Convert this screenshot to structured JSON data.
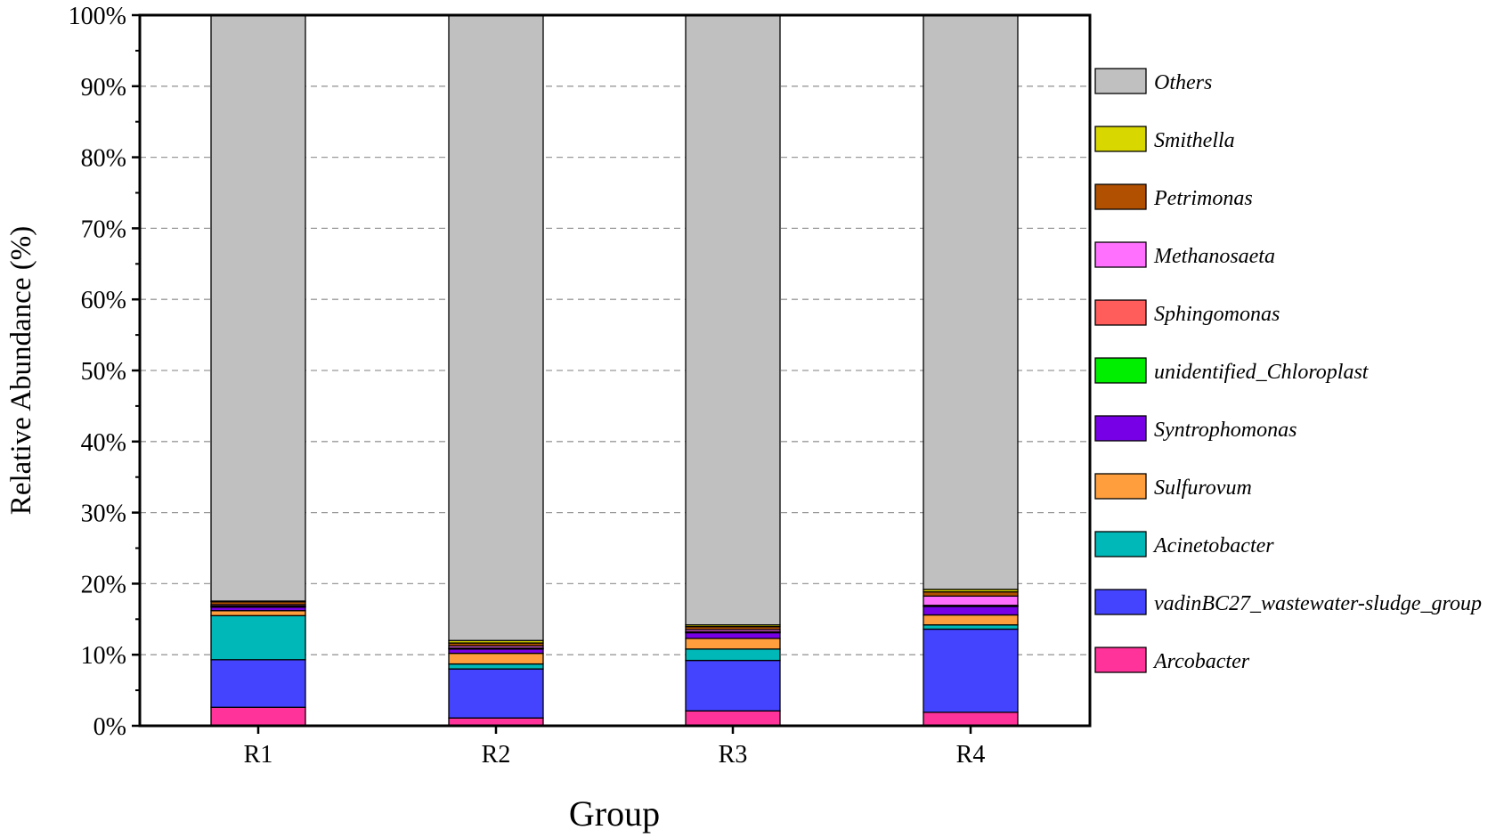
{
  "chart_data": {
    "type": "bar",
    "stacked": true,
    "xlabel": "Group",
    "ylabel": "Relative Abundance (%)",
    "ylim": [
      0,
      100
    ],
    "yticks": [
      "0%",
      "10%",
      "20%",
      "30%",
      "40%",
      "50%",
      "60%",
      "70%",
      "80%",
      "90%",
      "100%"
    ],
    "grid": "horizontal dashed",
    "legend": "right",
    "categories": [
      "R1",
      "R2",
      "R3",
      "R4"
    ],
    "series": [
      {
        "name": "Arcobacter",
        "color": "#FF3399",
        "values": [
          2.6,
          1.1,
          2.1,
          1.9
        ]
      },
      {
        "name": "vadinBC27_wastewater-sludge_group",
        "color": "#4444FF",
        "values": [
          6.7,
          6.9,
          7.1,
          11.7
        ]
      },
      {
        "name": "Acinetobacter",
        "color": "#00B8B8",
        "values": [
          6.2,
          0.7,
          1.6,
          0.6
        ]
      },
      {
        "name": "Sulfurovum",
        "color": "#FF9E3D",
        "values": [
          0.7,
          1.5,
          1.5,
          1.4
        ]
      },
      {
        "name": "Syntrophomonas",
        "color": "#7700E6",
        "values": [
          0.5,
          0.6,
          0.8,
          1.2
        ]
      },
      {
        "name": "unidentified_Chloroplast",
        "color": "#00EE00",
        "values": [
          0.05,
          0.05,
          0.05,
          0.05
        ]
      },
      {
        "name": "Sphingomonas",
        "color": "#FF5C5C",
        "values": [
          0.1,
          0.1,
          0.1,
          0.1
        ]
      },
      {
        "name": "Methanosaeta",
        "color": "#FF70FF",
        "values": [
          0.2,
          0.3,
          0.3,
          1.3
        ]
      },
      {
        "name": "Petrimonas",
        "color": "#B05000",
        "values": [
          0.4,
          0.4,
          0.4,
          0.6
        ]
      },
      {
        "name": "Smithella",
        "color": "#D8D800",
        "values": [
          0.1,
          0.35,
          0.25,
          0.35
        ]
      },
      {
        "name": "Others",
        "color": "#C0C0C0",
        "values": [
          82.45,
          88.0,
          85.8,
          80.8
        ]
      }
    ]
  }
}
